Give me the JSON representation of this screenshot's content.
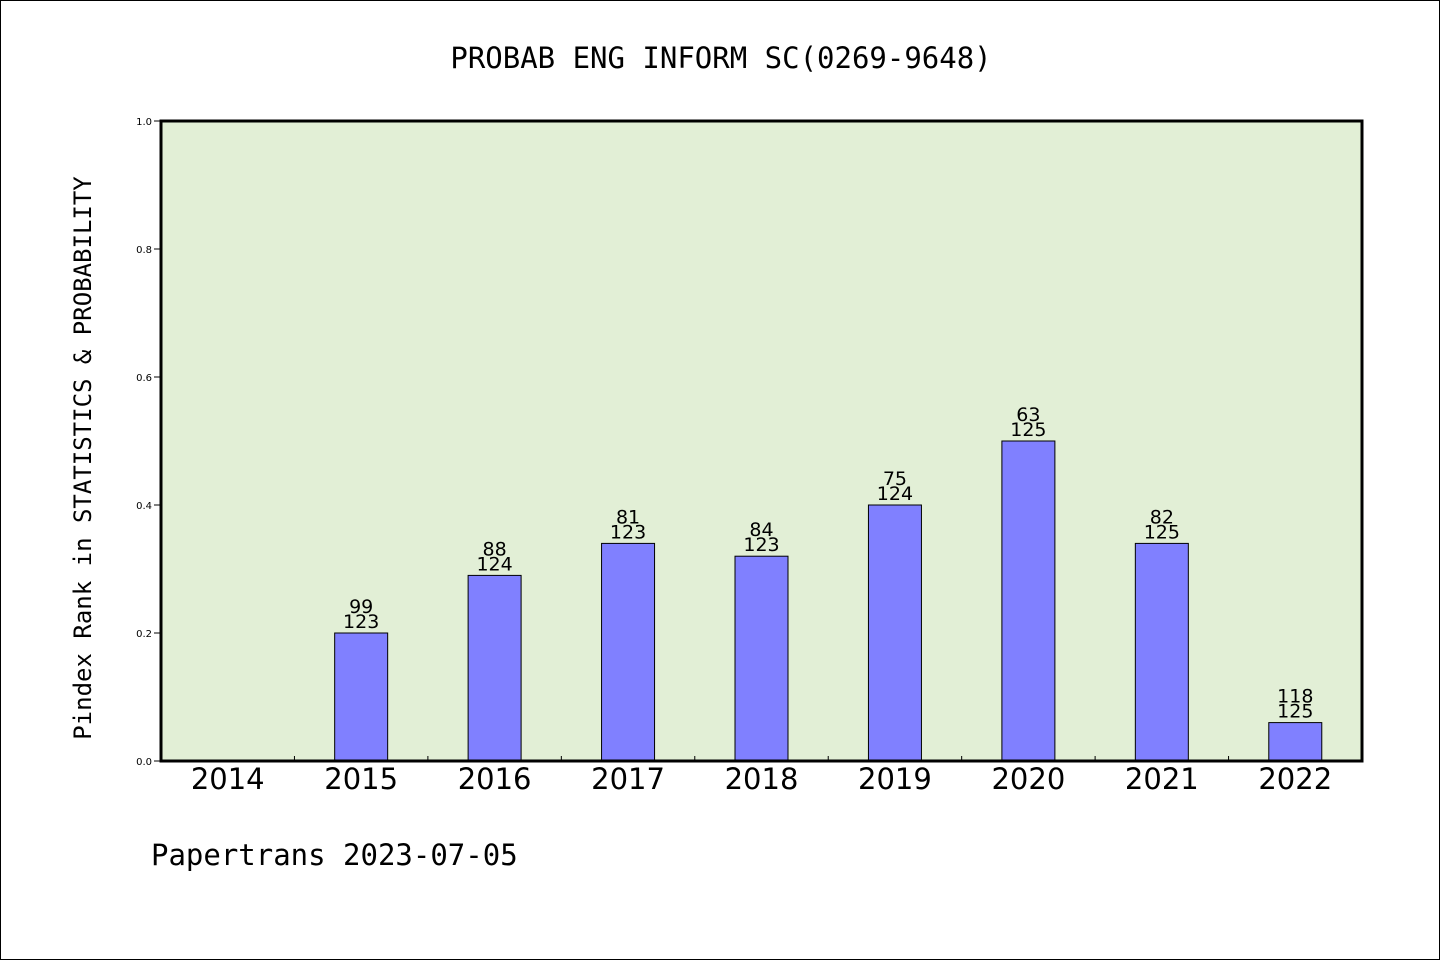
{
  "chart_data": {
    "type": "bar",
    "title": "PROBAB ENG INFORM SC(0269-9648)",
    "ylabel": "Pindex Rank in STATISTICS & PROBABILITY",
    "xlabel": "",
    "ylim": [
      0,
      1.0
    ],
    "yticks": [
      "0.0",
      "0.2",
      "0.4",
      "0.6",
      "0.8",
      "1.0"
    ],
    "categories": [
      "2014",
      "2015",
      "2016",
      "2017",
      "2018",
      "2019",
      "2020",
      "2021",
      "2022"
    ],
    "values": [
      null,
      0.2,
      0.29,
      0.34,
      0.32,
      0.4,
      0.5,
      0.34,
      0.06
    ],
    "rank": [
      null,
      "99",
      "88",
      "81",
      "84",
      "75",
      "63",
      "82",
      "118"
    ],
    "total": [
      null,
      "123",
      "124",
      "123",
      "123",
      "124",
      "125",
      "125",
      "125"
    ],
    "grid": false,
    "legend": "none",
    "colors": {
      "bar": "#8080ff",
      "plot_bg": "#e2efd6",
      "axis": "#000000"
    }
  },
  "footer": {
    "credit": "Papertrans 2023-07-05"
  }
}
